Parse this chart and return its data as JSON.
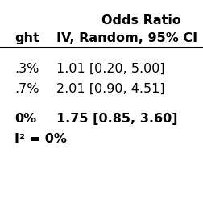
{
  "title_line1": "Odds Ratio",
  "title_line2_left": "ght",
  "title_line2_right": "IV, Random, 95% CI",
  "row1_weight": ".3%",
  "row1_ci": "1.01 [0.20, 5.00]",
  "row2_weight": ".7%",
  "row2_ci": "2.01 [0.90, 4.51]",
  "total_weight": "0%",
  "total_ci": "1.75 [0.85, 3.60]",
  "heterogeneity": "I² = 0%",
  "bg_color": "#ffffff",
  "text_color": "#000000",
  "divider_color": "#000000",
  "fontsize": 11.5,
  "bold_fontsize": 11.5
}
